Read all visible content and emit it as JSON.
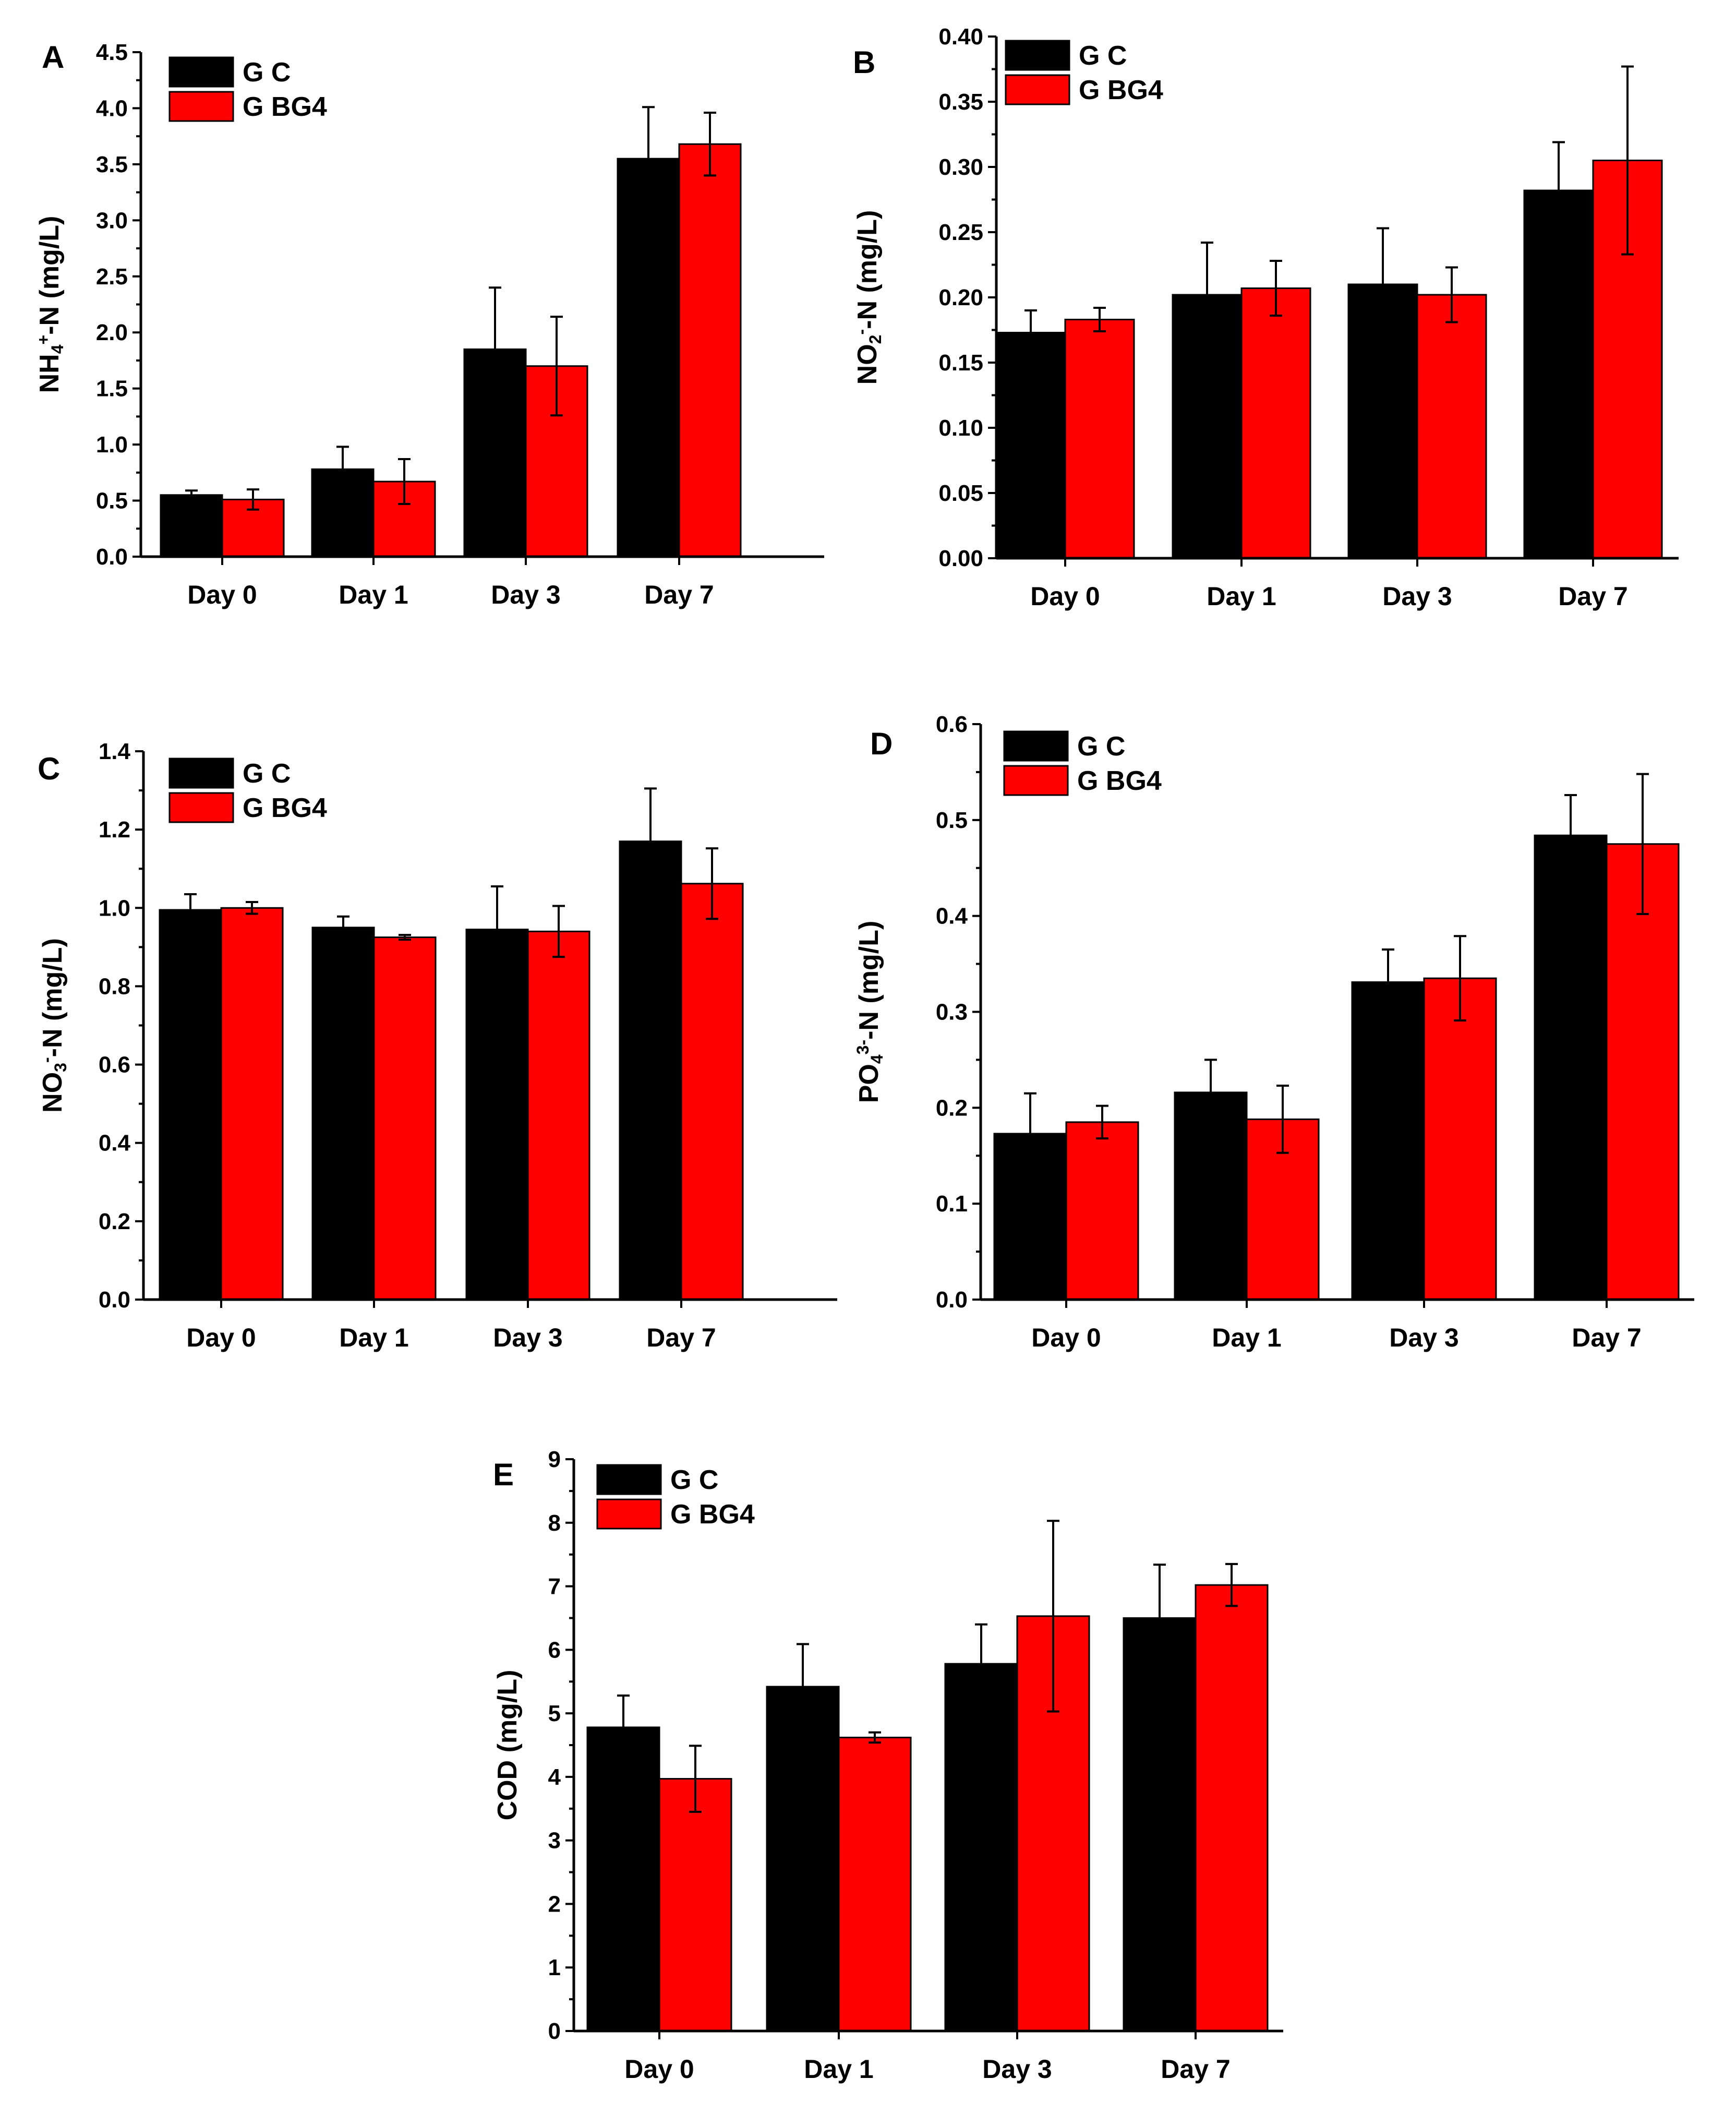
{
  "colors": {
    "gc": "#000000",
    "gbg4": "#ff0000",
    "axis": "#000000"
  },
  "chart_data": [
    {
      "panel": "A",
      "type": "bar",
      "categories": [
        "Day 0",
        "Day 1",
        "Day 3",
        "Day 7"
      ],
      "ylabel_main": "NH",
      "ylabel_sub": "4",
      "ylabel_sup": "+",
      "ylabel_rest": "-N (mg/L)",
      "ylim": [
        0,
        4.5
      ],
      "yticks": [
        0.0,
        0.5,
        1.0,
        1.5,
        2.0,
        2.5,
        3.0,
        3.5,
        4.0,
        4.5
      ],
      "ytick_labels": [
        "0.0",
        "0.5",
        "1.0",
        "1.5",
        "2.0",
        "2.5",
        "3.0",
        "3.5",
        "4.0",
        "4.5"
      ],
      "series": [
        {
          "name": "G C",
          "values": [
            0.55,
            0.78,
            1.85,
            3.55
          ],
          "errors": [
            0.04,
            0.2,
            0.55,
            0.46
          ]
        },
        {
          "name": "G BG4",
          "values": [
            0.51,
            0.67,
            1.7,
            3.68
          ],
          "errors": [
            0.09,
            0.2,
            0.44,
            0.28
          ]
        }
      ]
    },
    {
      "panel": "B",
      "type": "bar",
      "categories": [
        "Day 0",
        "Day 1",
        "Day 3",
        "Day 7"
      ],
      "ylabel_main": "NO",
      "ylabel_sub": "2",
      "ylabel_sup": "-",
      "ylabel_rest": "-N (mg/L)",
      "ylim": [
        0,
        0.4
      ],
      "yticks": [
        0.0,
        0.05,
        0.1,
        0.15,
        0.2,
        0.25,
        0.3,
        0.35,
        0.4
      ],
      "ytick_labels": [
        "0.00",
        "0.05",
        "0.10",
        "0.15",
        "0.20",
        "0.25",
        "0.30",
        "0.35",
        "0.40"
      ],
      "series": [
        {
          "name": "G C",
          "values": [
            0.173,
            0.202,
            0.21,
            0.282
          ],
          "errors": [
            0.017,
            0.04,
            0.043,
            0.037
          ]
        },
        {
          "name": "G BG4",
          "values": [
            0.183,
            0.207,
            0.202,
            0.305
          ],
          "errors": [
            0.009,
            0.021,
            0.021,
            0.072
          ]
        }
      ]
    },
    {
      "panel": "C",
      "type": "bar",
      "categories": [
        "Day 0",
        "Day 1",
        "Day 3",
        "Day 7"
      ],
      "ylabel_main": "NO",
      "ylabel_sub": "3",
      "ylabel_sup": "-",
      "ylabel_rest": "-N (mg/L)",
      "ylim": [
        0,
        1.4
      ],
      "yticks": [
        0.0,
        0.2,
        0.4,
        0.6,
        0.8,
        1.0,
        1.2,
        1.4
      ],
      "ytick_labels": [
        "0.0",
        "0.2",
        "0.4",
        "0.6",
        "0.8",
        "1.0",
        "1.2",
        "1.4"
      ],
      "series": [
        {
          "name": "G C",
          "values": [
            0.995,
            0.95,
            0.945,
            1.17
          ],
          "errors": [
            0.04,
            0.028,
            0.11,
            0.135
          ]
        },
        {
          "name": "G BG4",
          "values": [
            1.0,
            0.925,
            0.94,
            1.062
          ],
          "errors": [
            0.015,
            0.006,
            0.065,
            0.09
          ]
        }
      ]
    },
    {
      "panel": "D",
      "type": "bar",
      "categories": [
        "Day 0",
        "Day 1",
        "Day 3",
        "Day 7"
      ],
      "ylabel_main": "PO",
      "ylabel_sub": "4",
      "ylabel_sup": "3-",
      "ylabel_rest": "-N (mg/L)",
      "ylim": [
        0,
        0.6
      ],
      "yticks": [
        0.0,
        0.1,
        0.2,
        0.3,
        0.4,
        0.5,
        0.6
      ],
      "ytick_labels": [
        "0.0",
        "0.1",
        "0.2",
        "0.3",
        "0.4",
        "0.5",
        "0.6"
      ],
      "series": [
        {
          "name": "G C",
          "values": [
            0.173,
            0.216,
            0.331,
            0.484
          ],
          "errors": [
            0.042,
            0.034,
            0.034,
            0.042
          ]
        },
        {
          "name": "G BG4",
          "values": [
            0.185,
            0.188,
            0.335,
            0.475
          ],
          "errors": [
            0.017,
            0.035,
            0.044,
            0.073
          ]
        }
      ]
    },
    {
      "panel": "E",
      "type": "bar",
      "categories": [
        "Day 0",
        "Day 1",
        "Day 3",
        "Day 7"
      ],
      "ylabel_main": "COD (mg/L)",
      "ylabel_sub": "",
      "ylabel_sup": "",
      "ylabel_rest": "",
      "ylim": [
        0,
        9
      ],
      "yticks": [
        0,
        1,
        2,
        3,
        4,
        5,
        6,
        7,
        8,
        9
      ],
      "ytick_labels": [
        "0",
        "1",
        "2",
        "3",
        "4",
        "5",
        "6",
        "7",
        "8",
        "9"
      ],
      "series": [
        {
          "name": "G C",
          "values": [
            4.78,
            5.42,
            5.78,
            6.5
          ],
          "errors": [
            0.5,
            0.67,
            0.62,
            0.84
          ]
        },
        {
          "name": "G BG4",
          "values": [
            3.97,
            4.62,
            6.53,
            7.02
          ],
          "errors": [
            0.52,
            0.08,
            1.5,
            0.33
          ]
        }
      ]
    }
  ]
}
